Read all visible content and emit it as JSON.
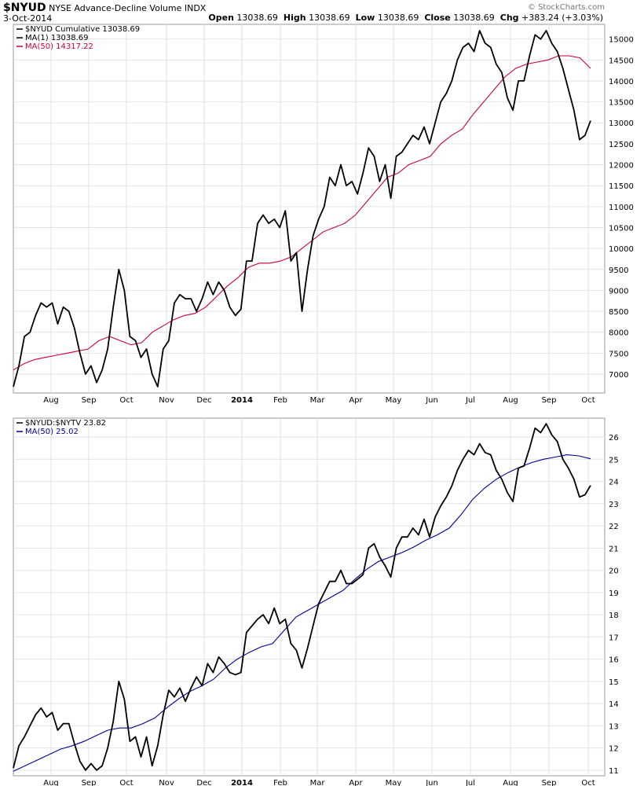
{
  "header": {
    "symbol": "$NYUD",
    "name": "NYSE Advance-Decline Volume",
    "exchange": "INDX",
    "date": "3-Oct-2014",
    "brand": "© StockCharts.com",
    "open_label": "Open",
    "open": "13038.69",
    "high_label": "High",
    "high": "13038.69",
    "low_label": "Low",
    "low": "13038.69",
    "close_label": "Close",
    "close": "13038.69",
    "chg_label": "Chg",
    "chg": "+383.24 (+3.03%)"
  },
  "colors": {
    "price": "#000000",
    "ma50_top": "#cc0033",
    "ma50_bottom": "#000099",
    "grid": "#e2e2e2"
  },
  "chart_data": [
    {
      "type": "line",
      "legend": [
        {
          "label": "$NYUD Cumulative 13038.69",
          "color": "#000000"
        },
        {
          "label": "MA(1) 13038.69",
          "color": "#000000"
        },
        {
          "label": "MA(50) 14317.22",
          "color": "#cc0033"
        }
      ],
      "x_ticks": [
        "Aug",
        "Sep",
        "Oct",
        "Nov",
        "Dec",
        "2014",
        "Feb",
        "Mar",
        "Apr",
        "May",
        "Jun",
        "Jul",
        "Aug",
        "Sep",
        "Oct"
      ],
      "y_ticks": [
        7000,
        7500,
        8000,
        8500,
        9000,
        9500,
        10000,
        10500,
        11000,
        11500,
        12000,
        12500,
        13000,
        13500,
        14000,
        14500,
        15000
      ],
      "ylim": [
        6550,
        15350
      ],
      "grid": true,
      "series": [
        {
          "name": "$NYUD Cumulative",
          "values": [
            6700,
            7200,
            7900,
            8000,
            8400,
            8700,
            8600,
            8700,
            8200,
            8600,
            8500,
            8100,
            7500,
            7000,
            7200,
            6800,
            7100,
            7600,
            8600,
            9500,
            9000,
            7900,
            7800,
            7400,
            7600,
            7000,
            6700,
            7600,
            7800,
            8700,
            8900,
            8800,
            8800,
            8500,
            8800,
            9200,
            8900,
            9200,
            9000,
            8600,
            8400,
            8550,
            9700,
            9700,
            10600,
            10800,
            10600,
            10700,
            10500,
            10900,
            9700,
            9900,
            8500,
            9500,
            10300,
            10700,
            11000,
            11700,
            11500,
            12000,
            11500,
            11600,
            11300,
            11800,
            12400,
            12200,
            11600,
            12000,
            11200,
            12200,
            12300,
            12500,
            12700,
            12600,
            12900,
            12500,
            13000,
            13500,
            13700,
            14000,
            14500,
            14800,
            14900,
            14700,
            15200,
            14900,
            14800,
            14400,
            14200,
            13600,
            13300,
            14000,
            14000,
            14600,
            15100,
            15000,
            15200,
            14900,
            14700,
            14300,
            13800,
            13300,
            12600,
            12700,
            13050
          ]
        },
        {
          "name": "MA(50)",
          "values": [
            7100,
            7250,
            7350,
            7400,
            7450,
            7500,
            7550,
            7600,
            7800,
            7900,
            7800,
            7700,
            7750,
            8000,
            8150,
            8300,
            8400,
            8450,
            8600,
            8850,
            9100,
            9300,
            9550,
            9650,
            9650,
            9700,
            9800,
            10000,
            10200,
            10400,
            10500,
            10600,
            10800,
            11100,
            11400,
            11700,
            11800,
            12000,
            12100,
            12200,
            12500,
            12700,
            12850,
            13200,
            13500,
            13800,
            14100,
            14300,
            14400,
            14450,
            14500,
            14600,
            14600,
            14550,
            14300
          ]
        }
      ]
    },
    {
      "type": "line",
      "legend": [
        {
          "label": "$NYUD:$NYTV 23.82",
          "color": "#000000"
        },
        {
          "label": "MA(50) 25.02",
          "color": "#000099"
        }
      ],
      "x_ticks": [
        "Aug",
        "Sep",
        "Oct",
        "Nov",
        "Dec",
        "2014",
        "Feb",
        "Mar",
        "Apr",
        "May",
        "Jun",
        "Jul",
        "Aug",
        "Sep",
        "Oct"
      ],
      "y_ticks": [
        11,
        12,
        13,
        14,
        15,
        16,
        17,
        18,
        19,
        20,
        21,
        22,
        23,
        24,
        25,
        26
      ],
      "ylim": [
        10.75,
        26.85
      ],
      "grid": true,
      "series": [
        {
          "name": "$NYUD:$NYTV",
          "values": [
            11.1,
            12.1,
            12.5,
            13.0,
            13.5,
            13.8,
            13.4,
            13.6,
            12.8,
            13.1,
            13.1,
            12.2,
            11.4,
            11.0,
            11.3,
            11.0,
            11.2,
            12.0,
            13.2,
            15.0,
            14.2,
            12.3,
            12.5,
            11.6,
            12.5,
            11.2,
            12.1,
            13.5,
            14.6,
            14.3,
            14.7,
            14.1,
            14.7,
            15.2,
            14.8,
            15.8,
            15.4,
            16.1,
            15.8,
            15.4,
            15.3,
            15.4,
            17.2,
            17.5,
            17.8,
            18.0,
            17.6,
            18.3,
            17.6,
            17.8,
            16.7,
            16.4,
            15.6,
            16.5,
            17.5,
            18.5,
            19.0,
            19.5,
            19.5,
            20.0,
            19.4,
            19.4,
            19.6,
            19.8,
            21.0,
            21.2,
            20.6,
            20.2,
            19.7,
            21.0,
            21.5,
            21.5,
            21.9,
            21.6,
            22.3,
            21.5,
            22.4,
            22.9,
            23.3,
            23.8,
            24.5,
            25.0,
            25.4,
            25.2,
            25.7,
            25.3,
            25.2,
            24.5,
            24.1,
            23.5,
            23.1,
            24.6,
            24.7,
            25.5,
            26.4,
            26.2,
            26.6,
            26.1,
            25.8,
            25.0,
            24.6,
            24.1,
            23.3,
            23.4,
            23.82
          ]
        },
        {
          "name": "MA(50)",
          "values": [
            10.95,
            11.2,
            11.45,
            11.7,
            11.95,
            12.1,
            12.3,
            12.55,
            12.8,
            12.9,
            12.9,
            13.1,
            13.35,
            13.8,
            14.2,
            14.55,
            14.8,
            15.1,
            15.6,
            16.0,
            16.3,
            16.55,
            16.7,
            17.3,
            17.9,
            18.2,
            18.5,
            18.8,
            19.1,
            19.6,
            20.05,
            20.4,
            20.6,
            20.8,
            21.05,
            21.35,
            21.6,
            21.9,
            22.5,
            23.2,
            23.7,
            24.1,
            24.4,
            24.65,
            24.85,
            25.0,
            25.1,
            25.2,
            25.15,
            25.02
          ]
        }
      ]
    }
  ]
}
